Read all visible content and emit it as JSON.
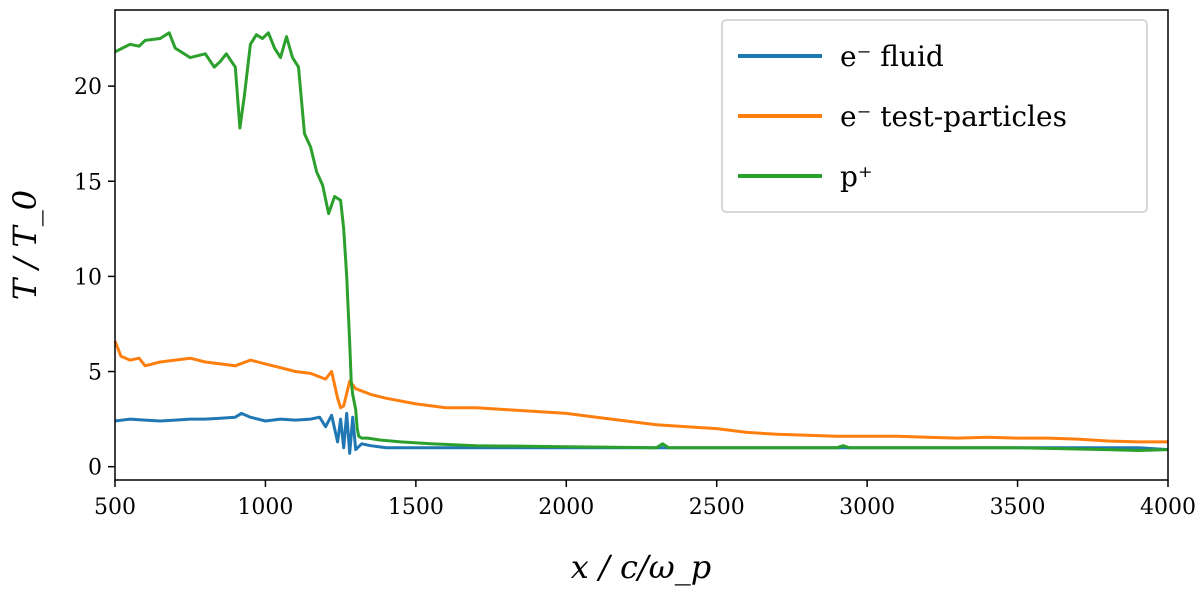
{
  "chart_data": {
    "type": "line",
    "title": "",
    "xlabel": "x / c/ω_p",
    "ylabel": "T / T_0",
    "xlim": [
      500,
      4000
    ],
    "ylim": [
      -0.7,
      24.0
    ],
    "xticks": [
      500,
      1000,
      1500,
      2000,
      2500,
      3000,
      3500,
      4000
    ],
    "yticks": [
      0,
      5,
      10,
      15,
      20
    ],
    "grid": false,
    "legend_position": "top-right",
    "series": [
      {
        "name": "e⁻ fluid",
        "color": "#1f77b4",
        "x": [
          500,
          550,
          600,
          650,
          700,
          750,
          800,
          850,
          900,
          920,
          950,
          1000,
          1050,
          1100,
          1150,
          1180,
          1200,
          1220,
          1240,
          1250,
          1260,
          1270,
          1280,
          1290,
          1300,
          1320,
          1350,
          1400,
          1500,
          1700,
          2000,
          2300,
          2500,
          2700,
          2900,
          3100,
          3300,
          3500,
          3700,
          3800,
          3900,
          4000
        ],
        "y": [
          2.4,
          2.5,
          2.45,
          2.4,
          2.45,
          2.5,
          2.5,
          2.55,
          2.6,
          2.8,
          2.6,
          2.4,
          2.5,
          2.45,
          2.5,
          2.6,
          2.1,
          2.7,
          1.3,
          2.5,
          1.0,
          2.8,
          0.7,
          2.6,
          0.9,
          1.2,
          1.1,
          1.0,
          1.0,
          1.0,
          1.0,
          1.0,
          1.0,
          1.0,
          1.0,
          1.0,
          1.0,
          1.0,
          1.0,
          1.0,
          1.0,
          0.9
        ]
      },
      {
        "name": "e⁻ test-particles",
        "color": "#ff7f0e",
        "x": [
          500,
          520,
          550,
          580,
          600,
          650,
          700,
          750,
          800,
          850,
          900,
          950,
          1000,
          1050,
          1100,
          1150,
          1200,
          1220,
          1240,
          1250,
          1260,
          1280,
          1300,
          1350,
          1400,
          1500,
          1600,
          1700,
          1800,
          1900,
          2000,
          2100,
          2200,
          2300,
          2400,
          2500,
          2600,
          2700,
          2800,
          2900,
          3000,
          3100,
          3200,
          3300,
          3400,
          3500,
          3600,
          3700,
          3800,
          3900,
          4000
        ],
        "y": [
          6.6,
          5.8,
          5.6,
          5.7,
          5.3,
          5.5,
          5.6,
          5.7,
          5.5,
          5.4,
          5.3,
          5.6,
          5.4,
          5.2,
          5.0,
          4.9,
          4.6,
          5.0,
          3.6,
          3.1,
          3.2,
          4.5,
          4.1,
          3.8,
          3.6,
          3.3,
          3.1,
          3.1,
          3.0,
          2.9,
          2.8,
          2.6,
          2.4,
          2.2,
          2.1,
          2.0,
          1.8,
          1.7,
          1.65,
          1.6,
          1.6,
          1.6,
          1.55,
          1.5,
          1.55,
          1.5,
          1.5,
          1.45,
          1.35,
          1.3,
          1.3
        ]
      },
      {
        "name": "p⁺",
        "color": "#2ca02c",
        "x": [
          500,
          550,
          580,
          600,
          650,
          680,
          700,
          750,
          800,
          830,
          850,
          870,
          900,
          915,
          930,
          950,
          970,
          990,
          1010,
          1030,
          1050,
          1070,
          1090,
          1110,
          1130,
          1150,
          1170,
          1190,
          1210,
          1230,
          1250,
          1260,
          1270,
          1280,
          1285,
          1290,
          1295,
          1300,
          1305,
          1310,
          1320,
          1340,
          1380,
          1450,
          1550,
          1700,
          2000,
          2300,
          2320,
          2340,
          2500,
          2900,
          2920,
          2940,
          3200,
          3500,
          3800,
          3900,
          4000
        ],
        "y": [
          21.8,
          22.2,
          22.1,
          22.4,
          22.5,
          22.8,
          22.0,
          21.5,
          21.7,
          21.0,
          21.3,
          21.7,
          21.0,
          17.8,
          19.5,
          22.2,
          22.7,
          22.5,
          22.8,
          22.0,
          21.5,
          22.6,
          21.5,
          21.0,
          17.5,
          16.8,
          15.5,
          14.8,
          13.3,
          14.2,
          14.0,
          12.5,
          10.0,
          6.5,
          4.5,
          3.8,
          3.4,
          3.0,
          2.0,
          1.6,
          1.5,
          1.5,
          1.4,
          1.3,
          1.2,
          1.1,
          1.05,
          1.0,
          1.2,
          1.0,
          1.0,
          1.0,
          1.1,
          1.0,
          1.0,
          1.0,
          0.9,
          0.85,
          0.9
        ]
      }
    ]
  }
}
